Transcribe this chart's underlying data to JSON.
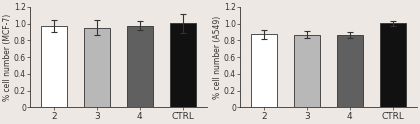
{
  "chart1": {
    "categories": [
      "2",
      "3",
      "4",
      "CTRL"
    ],
    "values": [
      0.975,
      0.95,
      0.975,
      1.005
    ],
    "errors": [
      0.07,
      0.09,
      0.055,
      0.115
    ],
    "bar_colors": [
      "#ffffff",
      "#b8b8b8",
      "#606060",
      "#111111"
    ],
    "bar_edgecolor": "#333333",
    "ylim": [
      0,
      1.2
    ],
    "yticks": [
      0,
      0.2,
      0.4,
      0.6,
      0.8,
      1.0,
      1.2
    ],
    "ylabel": "% cell number (MCF-7)"
  },
  "chart2": {
    "categories": [
      "2",
      "3",
      "4",
      "CTRL"
    ],
    "values": [
      0.875,
      0.87,
      0.865,
      1.005
    ],
    "errors": [
      0.055,
      0.04,
      0.04,
      0.028
    ],
    "bar_colors": [
      "#ffffff",
      "#b8b8b8",
      "#606060",
      "#111111"
    ],
    "bar_edgecolor": "#333333",
    "ylim": [
      0,
      1.2
    ],
    "yticks": [
      0,
      0.2,
      0.4,
      0.6,
      0.8,
      1.0,
      1.2
    ],
    "ylabel": "% cell number (A549)"
  },
  "background_color": "#ede8e3",
  "bar_width": 0.6,
  "fontsize_ylabel": 5.5,
  "fontsize_tick": 5.5,
  "fontsize_xtick": 6.5
}
